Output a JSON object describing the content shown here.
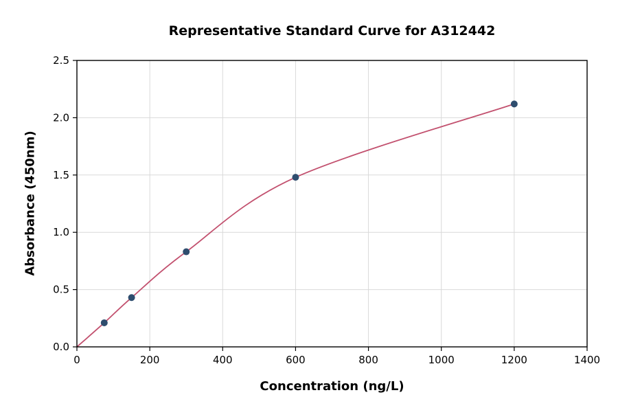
{
  "chart_data": {
    "type": "scatter",
    "title": "Representative Standard Curve for A312442",
    "xlabel": "Concentration (ng/L)",
    "ylabel": "Absorbance (450nm)",
    "xlim": [
      0,
      1400
    ],
    "ylim": [
      0,
      2.5
    ],
    "xticks": [
      0,
      200,
      400,
      600,
      800,
      1000,
      1200,
      1400
    ],
    "xtick_labels": [
      "0",
      "200",
      "400",
      "600",
      "800",
      "1000",
      "1200",
      "1400"
    ],
    "yticks": [
      0,
      0.5,
      1.0,
      1.5,
      2.0,
      2.5
    ],
    "ytick_labels": [
      "0.0",
      "0.5",
      "1.0",
      "1.5",
      "2.0",
      "2.5"
    ],
    "grid": true,
    "legend": "none",
    "points": [
      {
        "x": 75,
        "y": 0.21
      },
      {
        "x": 150,
        "y": 0.43
      },
      {
        "x": 300,
        "y": 0.83
      },
      {
        "x": 600,
        "y": 1.48
      },
      {
        "x": 1200,
        "y": 2.12
      }
    ],
    "curve_start": {
      "x": 0,
      "y": 0
    },
    "colors": {
      "curve": "#c2506e",
      "marker": "#2e4d6e",
      "grid": "#d9d9d9",
      "axis": "#000000",
      "background": "#ffffff"
    }
  }
}
